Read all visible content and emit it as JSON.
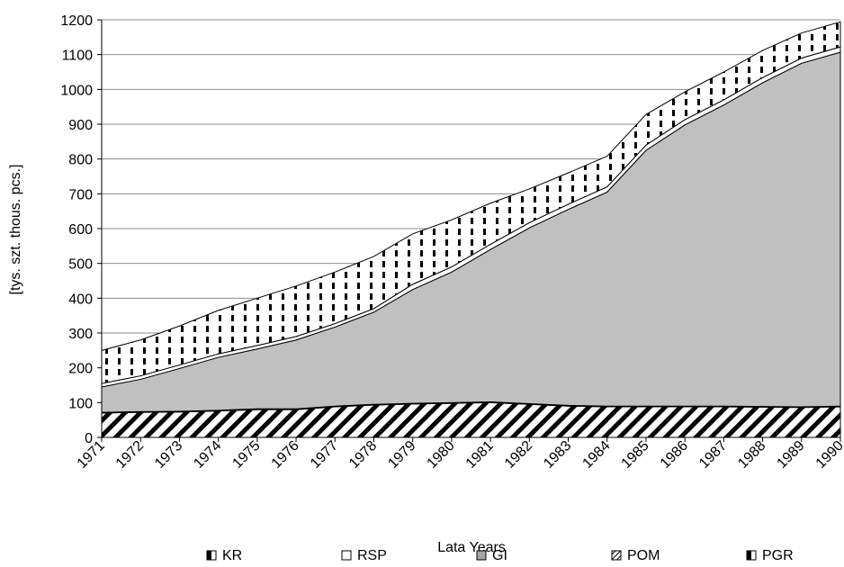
{
  "chart_data": {
    "type": "area",
    "stacked": true,
    "xlabel": "Lata Years",
    "ylabel": "[tys. szt. thous. pcs.]",
    "ylim": [
      0,
      1200
    ],
    "yticks": [
      0,
      100,
      200,
      300,
      400,
      500,
      600,
      700,
      800,
      900,
      1000,
      1100,
      1200
    ],
    "grid": true,
    "legend_position": "bottom",
    "x": [
      "1971",
      "1972",
      "1973",
      "1974",
      "1975",
      "1976",
      "1977",
      "1978",
      "1979",
      "1980",
      "1981",
      "1982",
      "1983",
      "1984",
      "1985",
      "1986",
      "1987",
      "1988",
      "1989",
      "1990"
    ],
    "series": [
      {
        "name": "PGR",
        "values": [
          70,
          72,
          73,
          76,
          80,
          80,
          88,
          93,
          96,
          98,
          100,
          95,
          90,
          88,
          88,
          88,
          88,
          87,
          86,
          88
        ]
      },
      {
        "name": "POM",
        "values": [
          2,
          2,
          2,
          2,
          2,
          2,
          2,
          2,
          2,
          2,
          2,
          2,
          2,
          2,
          2,
          2,
          2,
          2,
          2,
          2
        ]
      },
      {
        "name": "GI",
        "values": [
          73,
          93,
          123,
          152,
          172,
          198,
          227,
          265,
          327,
          375,
          438,
          505,
          563,
          615,
          735,
          808,
          865,
          930,
          987,
          1017
        ]
      },
      {
        "name": "RSP",
        "values": [
          10,
          10,
          10,
          10,
          10,
          10,
          10,
          10,
          15,
          15,
          15,
          15,
          15,
          15,
          15,
          15,
          15,
          15,
          15,
          15
        ]
      },
      {
        "name": "KR",
        "values": [
          95,
          103,
          112,
          125,
          136,
          145,
          148,
          150,
          145,
          135,
          118,
          97,
          90,
          88,
          88,
          80,
          80,
          78,
          72,
          72
        ]
      }
    ],
    "legend_order": [
      "KR",
      "RSP",
      "GI",
      "POM",
      "PGR"
    ]
  }
}
